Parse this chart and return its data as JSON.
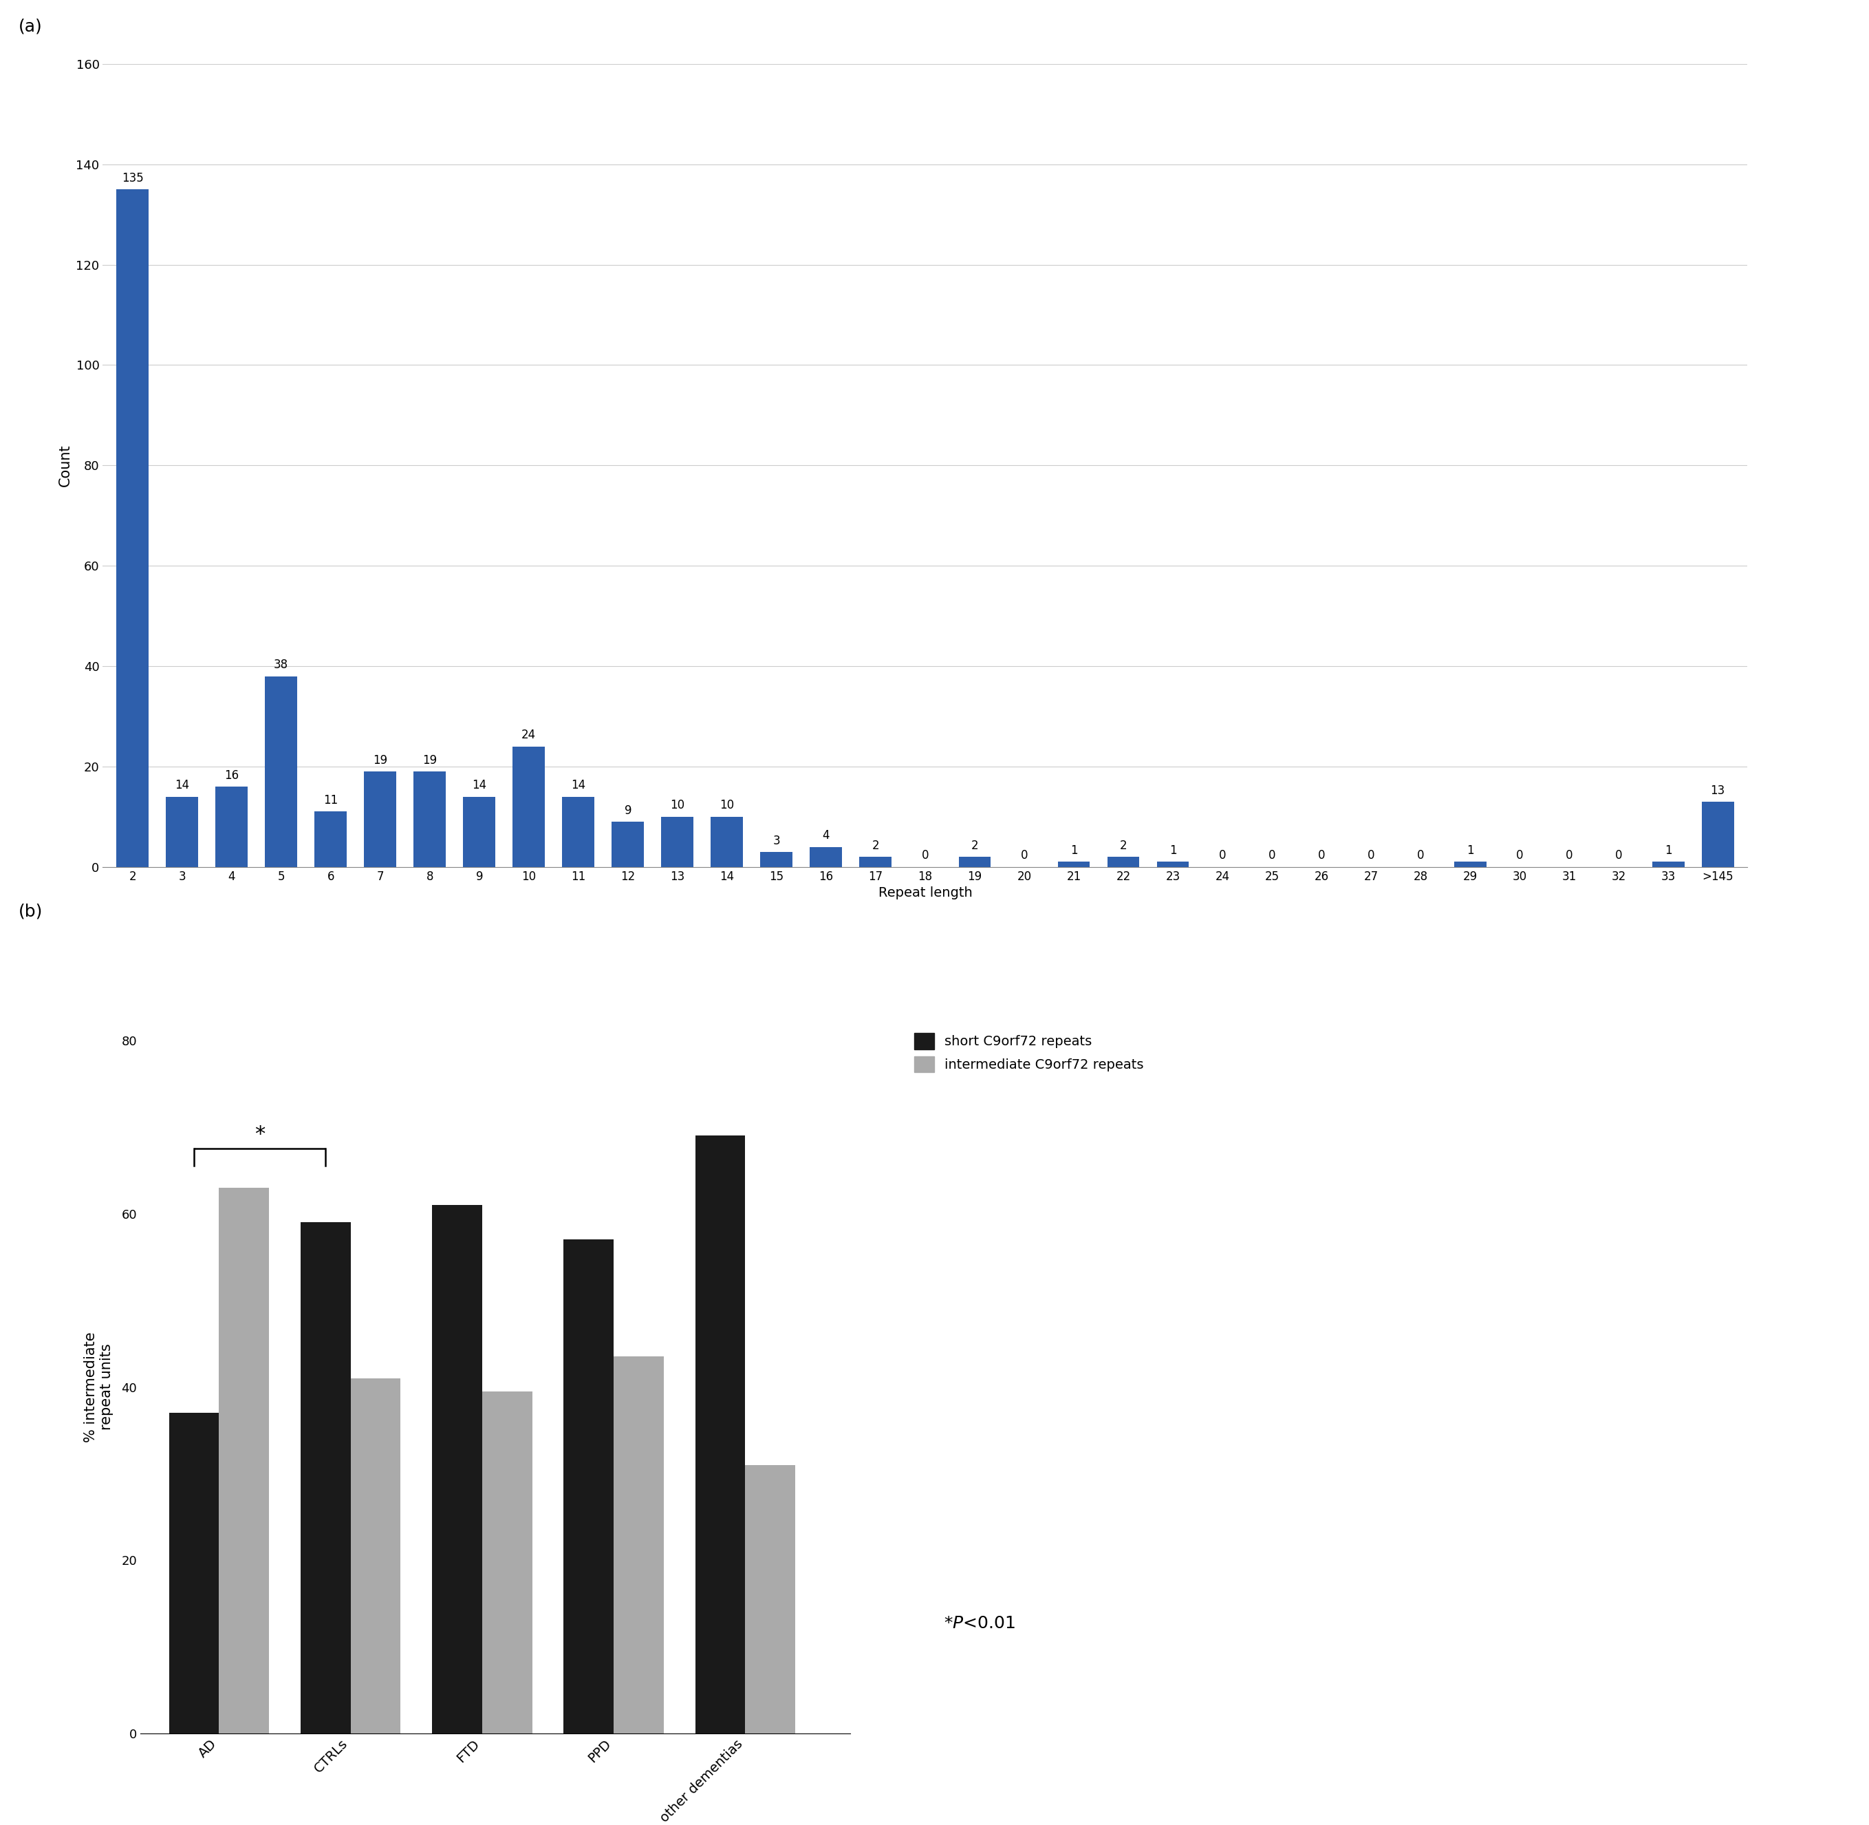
{
  "panel_a": {
    "categories": [
      "2",
      "3",
      "4",
      "5",
      "6",
      "7",
      "8",
      "9",
      "10",
      "11",
      "12",
      "13",
      "14",
      "15",
      "16",
      "17",
      "18",
      "19",
      "20",
      "21",
      "22",
      "23",
      "24",
      "25",
      "26",
      "27",
      "28",
      "29",
      "30",
      "31",
      "32",
      "33",
      ">145"
    ],
    "values": [
      135,
      14,
      16,
      38,
      11,
      19,
      19,
      14,
      24,
      14,
      9,
      10,
      10,
      3,
      4,
      2,
      0,
      2,
      0,
      1,
      2,
      1,
      0,
      0,
      0,
      0,
      0,
      1,
      0,
      0,
      0,
      1,
      13
    ],
    "bar_color": "#2E5FAC",
    "ylabel": "Count",
    "xlabel": "Repeat length",
    "ylim": [
      0,
      160
    ],
    "yticks": [
      0,
      20,
      40,
      60,
      80,
      100,
      120,
      140,
      160
    ],
    "label": "(a)"
  },
  "panel_b": {
    "categories": [
      "AD",
      "CTRLs",
      "FTD",
      "PPD",
      "other dementias"
    ],
    "short_values": [
      37.0,
      59.0,
      61.0,
      57.0,
      69.0
    ],
    "intermediate_values": [
      63.0,
      41.0,
      39.5,
      43.5,
      31.0
    ],
    "short_color": "#1a1a1a",
    "intermediate_color": "#AAAAAA",
    "ylabel": "% intermediate\nrepeat units",
    "ylim": [
      0,
      80
    ],
    "yticks": [
      0,
      20,
      40,
      60,
      80
    ],
    "label": "(b)",
    "legend_short": "short C9orf72 repeats",
    "legend_intermediate": "intermediate C9orf72 repeats",
    "sig_marker": "*",
    "significance_text": "*",
    "significance_ptext": "P<0.01"
  }
}
